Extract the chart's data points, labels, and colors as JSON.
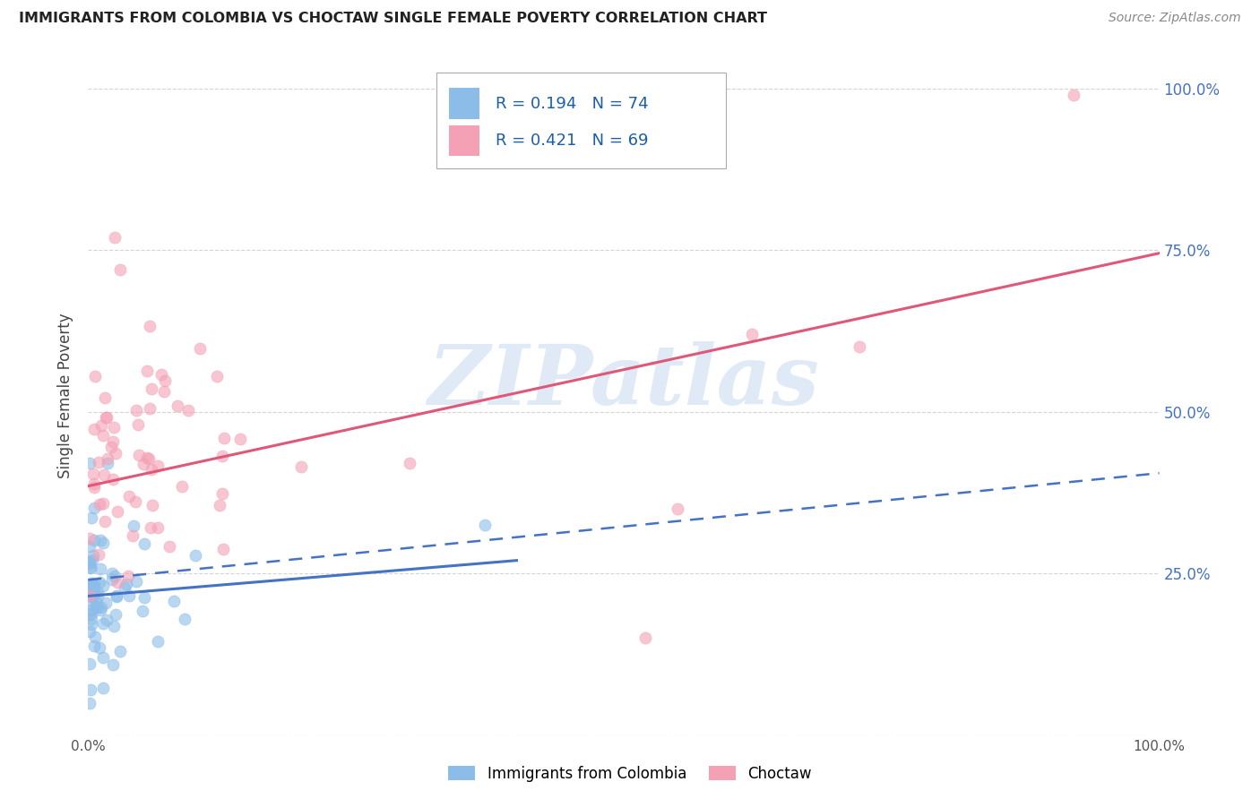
{
  "title": "IMMIGRANTS FROM COLOMBIA VS CHOCTAW SINGLE FEMALE POVERTY CORRELATION CHART",
  "source": "Source: ZipAtlas.com",
  "ylabel": "Single Female Poverty",
  "legend_label1": "Immigrants from Colombia",
  "legend_label2": "Choctaw",
  "r1": "0.194",
  "n1": "74",
  "r2": "0.421",
  "n2": "69",
  "watermark_text": "ZIPatlas",
  "color_blue": "#8bbde8",
  "color_pink": "#f4a0b5",
  "color_blue_line": "#4472c4",
  "color_pink_line": "#e05878",
  "bg_color": "#ffffff",
  "grid_color": "#d0d0d0",
  "ytick_color": "#4472c4",
  "title_color": "#222222",
  "source_color": "#888888",
  "legend_text_color": "#1a5fa8",
  "legend_r_color": "#1a5fa8",
  "xlim": [
    0.0,
    1.0
  ],
  "ylim": [
    0.0,
    1.05
  ],
  "yticks": [
    0.0,
    0.25,
    0.5,
    0.75,
    1.0
  ],
  "ytick_labels": [
    "",
    "25.0%",
    "50.0%",
    "75.0%",
    "100.0%"
  ],
  "xtick_labels_show": [
    "0.0%",
    "100.0%"
  ],
  "col_line_x": [
    0.0,
    1.0
  ],
  "col_line_y": [
    0.215,
    0.32
  ],
  "col_dash_line_x": [
    0.0,
    1.0
  ],
  "col_dash_line_y": [
    0.24,
    0.405
  ],
  "cho_line_x": [
    0.0,
    1.0
  ],
  "cho_line_y": [
    0.385,
    0.745
  ]
}
